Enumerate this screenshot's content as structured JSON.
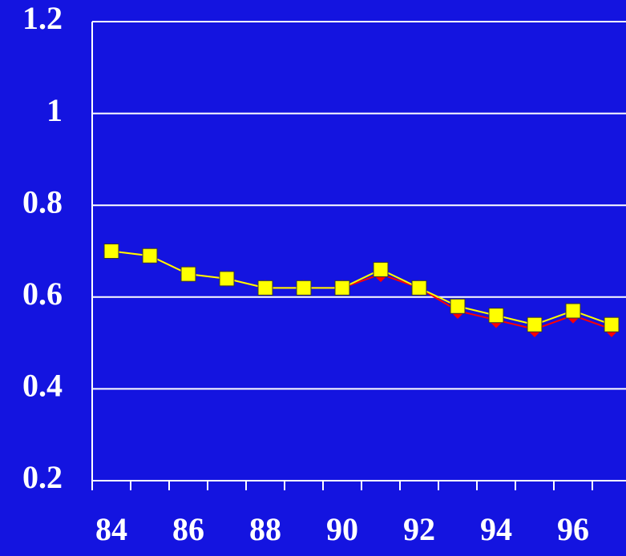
{
  "chart_data": {
    "type": "line",
    "categories": [
      "84",
      null,
      "86",
      null,
      "88",
      null,
      "90",
      null,
      "92",
      null,
      "94",
      null,
      "96",
      null
    ],
    "series": [
      {
        "color": "#ff0000",
        "marker": "diamond",
        "values": [
          0.7,
          0.69,
          0.65,
          0.64,
          0.62,
          0.62,
          0.62,
          0.65,
          0.62,
          0.57,
          0.55,
          0.53,
          0.56,
          0.53
        ]
      },
      {
        "color": "#ffff00",
        "marker": "square",
        "values": [
          0.7,
          0.69,
          0.65,
          0.64,
          0.62,
          0.62,
          0.62,
          0.66,
          0.62,
          0.58,
          0.56,
          0.54,
          0.57,
          0.54
        ]
      }
    ],
    "ylim": [
      0.2,
      1.2
    ],
    "yticks": [
      1.2,
      1,
      0.8,
      0.6,
      0.4,
      0.2
    ],
    "grid": true
  }
}
